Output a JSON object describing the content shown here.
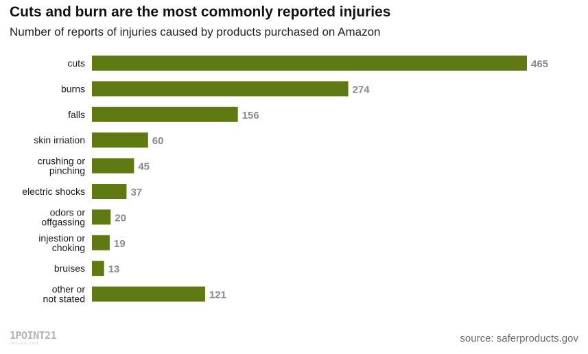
{
  "chart_data": {
    "type": "bar",
    "orientation": "horizontal",
    "title": "Cuts and burn are the most commonly reported injuries",
    "subtitle": "Number of reports of injuries caused by products purchased on Amazon",
    "categories": [
      [
        "cuts"
      ],
      [
        "burns"
      ],
      [
        "falls"
      ],
      [
        "skin irriation"
      ],
      [
        "crushing or",
        "pinching"
      ],
      [
        "electric shocks"
      ],
      [
        "odors or",
        "offgassing"
      ],
      [
        "injestion or",
        "choking"
      ],
      [
        "bruises"
      ],
      [
        "other or",
        "not stated"
      ]
    ],
    "values": [
      465,
      274,
      156,
      60,
      45,
      37,
      20,
      19,
      13,
      121
    ],
    "xlim": [
      0,
      465
    ],
    "grid": false,
    "bar_color": "#5f7a12",
    "value_label_color": "#8a8a8a"
  },
  "footer": {
    "source": "source: saferproducts.gov",
    "logo_text": "1POINT21",
    "logo_subtext": "INTERACTIVE"
  }
}
